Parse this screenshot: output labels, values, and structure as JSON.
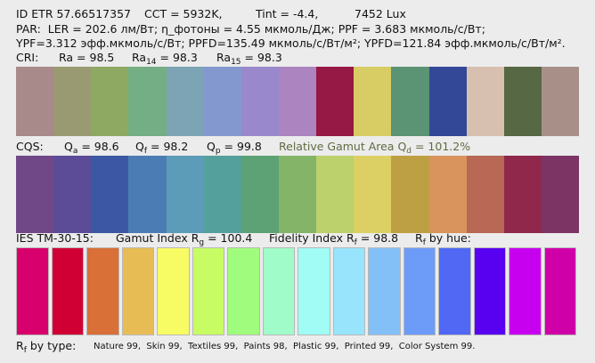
{
  "header": {
    "line1": [
      "ID ETR 57.66517357",
      "CCT = 5932K,",
      "Tint = -4.4,",
      "7452 Lux"
    ],
    "line2": "PAR:  LER = 202.6 лм/Вт; η_фотоны = 4.55 мкмоль/Дж; PPF = 3.683 мкмоль/с/Вт;",
    "line3": "YPF=3.312 эфф.мкмоль/с/Вт; PPFD=135.49 мкмоль/с/Вт/м²; YPFD=121.84 эфф.мкмоль/с/Вт/м².",
    "cri": {
      "label": "CRI:",
      "ra": "Ra = 98.5",
      "ra14": {
        "name": "Ra",
        "sub": "14",
        "value": "= 98.3"
      },
      "ra15": {
        "name": "Ra",
        "sub": "15",
        "value": "= 98.3"
      }
    }
  },
  "cri_swatches": [
    "#a88a8a",
    "#9a9a72",
    "#8eaa62",
    "#74ae84",
    "#7ca4b4",
    "#8498d0",
    "#9a88cc",
    "#ac84c0",
    "#961844",
    "#d8cc64",
    "#5a9474",
    "#344898",
    "#d8c0b0",
    "#566844",
    "#a89088"
  ],
  "cqs": {
    "label": "CQS:",
    "qa": {
      "name": "Q",
      "sub": "a",
      "value": "= 98.6"
    },
    "qf": {
      "name": "Q",
      "sub": "f",
      "value": "= 98.2"
    },
    "qp": {
      "name": "Q",
      "sub": "p",
      "value": "= 99.8"
    },
    "gamut": {
      "name": "Relative Gamut Area Q",
      "sub": "d",
      "value": "= 101.2%"
    }
  },
  "cqs_swatches": [
    "#704888",
    "#5c4c98",
    "#3c58a4",
    "#4c7cb4",
    "#5c9cb8",
    "#54a09c",
    "#5ca274",
    "#84b468",
    "#bcd06c",
    "#dcd064",
    "#bea044",
    "#d8945c",
    "#b86854",
    "#90284c",
    "#7c3464"
  ],
  "tm30": {
    "label": "IES TM-30-15:",
    "rg": {
      "name": "Gamut Index R",
      "sub": "g",
      "value": "= 100.4"
    },
    "rf": {
      "name": "Fidelity Index R",
      "sub": "f",
      "value": "= 98.8"
    },
    "hue": {
      "name": "R",
      "sub": "f",
      "value": "by hue:"
    }
  },
  "hue_swatches": [
    "#d8006c",
    "#d00034",
    "#d87038",
    "#e8bc54",
    "#f8fc64",
    "#c8fc64",
    "#a0fc7c",
    "#a0fcc8",
    "#a0fcf4",
    "#98e4fc",
    "#84c0f8",
    "#6c9cf8",
    "#5068f4",
    "#5800f0",
    "#c800f0",
    "#d000a8"
  ],
  "footer": {
    "label": {
      "name": "R",
      "sub": "f",
      "value": "by type:"
    },
    "types": "Nature 99,  Skin 99,  Textiles 99,  Paints 98,  Plastic 99,  Printed 99,  Color System 99."
  }
}
